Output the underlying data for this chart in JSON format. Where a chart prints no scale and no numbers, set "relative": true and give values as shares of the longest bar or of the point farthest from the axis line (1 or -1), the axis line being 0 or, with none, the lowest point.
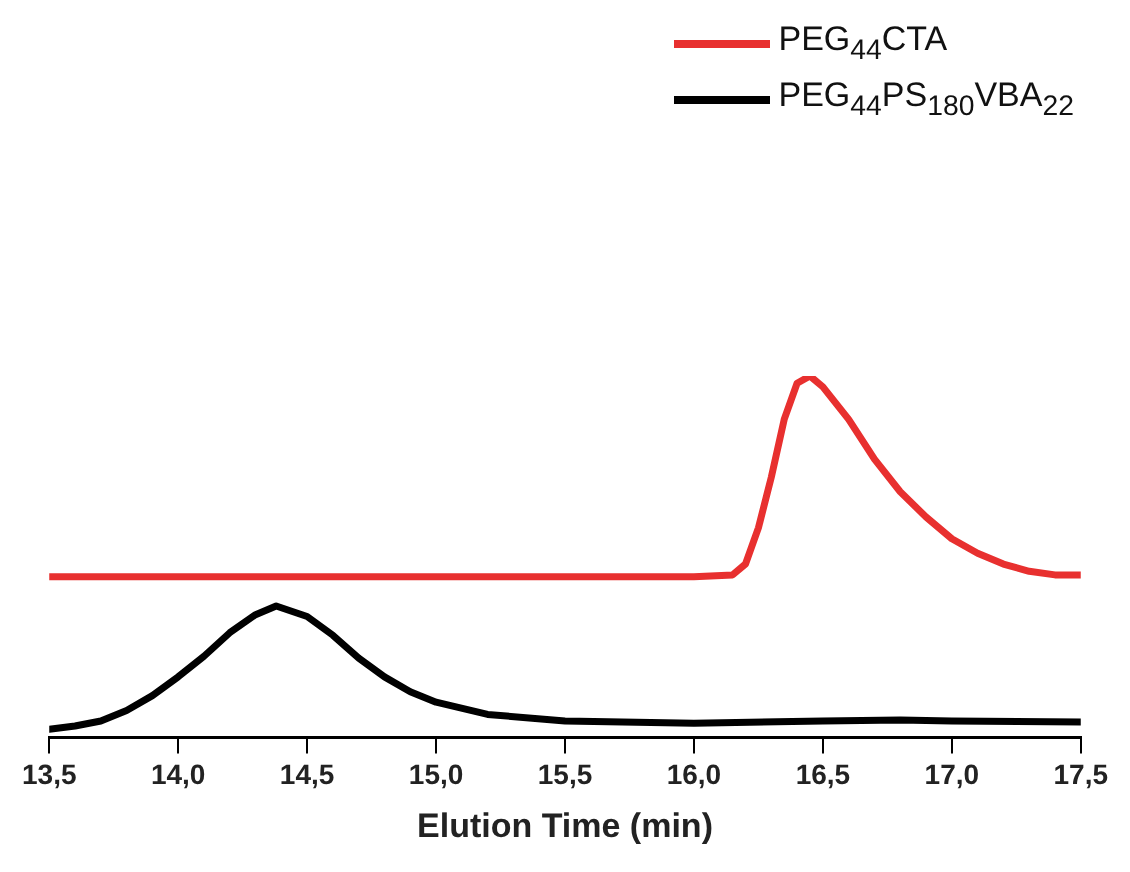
{
  "chart_data": {
    "type": "line",
    "relative": true,
    "xlabel": "Elution Time (min)",
    "xlim": [
      13.5,
      17.5
    ],
    "xticks": [
      {
        "value": 13.5,
        "label": "13,5"
      },
      {
        "value": 14,
        "label": "14,0"
      },
      {
        "value": 14.5,
        "label": "14,5"
      },
      {
        "value": 15,
        "label": "15,0"
      },
      {
        "value": 15.5,
        "label": "15,5"
      },
      {
        "value": 16,
        "label": "16,0"
      },
      {
        "value": 16.5,
        "label": "16,5"
      },
      {
        "value": 17,
        "label": "17,0"
      },
      {
        "value": 17.5,
        "label": "17,5"
      }
    ],
    "legend": "top right",
    "grid": false,
    "marker": "none",
    "line_style": "solid",
    "series": [
      {
        "name": "PEG$_{44}$CTA",
        "color": "#e8302f",
        "x": [
          13.5,
          14.0,
          14.5,
          15.0,
          15.5,
          16.0,
          16.15,
          16.2,
          16.25,
          16.3,
          16.35,
          16.4,
          16.45,
          16.5,
          16.6,
          16.7,
          16.8,
          16.9,
          17.0,
          17.1,
          17.2,
          17.3,
          17.4,
          17.5
        ],
        "values": [
          0.445,
          0.445,
          0.445,
          0.445,
          0.445,
          0.445,
          0.45,
          0.48,
          0.58,
          0.72,
          0.88,
          0.98,
          1.0,
          0.97,
          0.88,
          0.77,
          0.68,
          0.61,
          0.55,
          0.51,
          0.48,
          0.46,
          0.45,
          0.45
        ]
      },
      {
        "name": "PEG$_{44}$PS$_{180}$VBA$_{22}$",
        "color": "#000000",
        "x": [
          13.5,
          13.6,
          13.7,
          13.8,
          13.9,
          14.0,
          14.1,
          14.2,
          14.3,
          14.38,
          14.5,
          14.6,
          14.7,
          14.8,
          14.9,
          15.0,
          15.2,
          15.5,
          16.0,
          16.5,
          16.8,
          17.0,
          17.5
        ],
        "values": [
          0.023,
          0.032,
          0.046,
          0.075,
          0.116,
          0.168,
          0.225,
          0.29,
          0.34,
          0.364,
          0.335,
          0.283,
          0.22,
          0.168,
          0.127,
          0.098,
          0.064,
          0.046,
          0.04,
          0.046,
          0.049,
          0.046,
          0.043
        ]
      }
    ]
  }
}
